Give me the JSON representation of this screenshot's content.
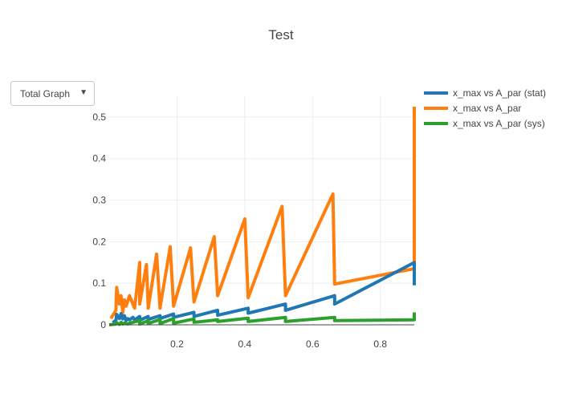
{
  "title": "Test",
  "dropdown": {
    "selected": "Total Graph",
    "arrow": "▼"
  },
  "colors": {
    "stat": "#1f77b4",
    "par": "#ff7f0e",
    "sys": "#2ca02c",
    "axis": "#444444",
    "grid": "#eeeeee"
  },
  "chart_data": {
    "type": "line",
    "title": "Test",
    "xlim": [
      0,
      0.9
    ],
    "ylim": [
      0,
      0.55
    ],
    "xticks": [
      0.2,
      0.4,
      0.6,
      0.8
    ],
    "yticks": [
      0,
      0.1,
      0.2,
      0.3,
      0.4,
      0.5
    ],
    "legend_position": "top-right",
    "grid": true,
    "series": [
      {
        "name": "x_max vs A_par (stat)",
        "color": "#1f77b4",
        "x": [
          0.01,
          0.02,
          0.022,
          0.03,
          0.035,
          0.04,
          0.045,
          0.05,
          0.055,
          0.06,
          0.07,
          0.075,
          0.09,
          0.09,
          0.115,
          0.115,
          0.15,
          0.15,
          0.19,
          0.19,
          0.25,
          0.25,
          0.32,
          0.32,
          0.41,
          0.41,
          0.52,
          0.52,
          0.665,
          0.665,
          0.9,
          0.9
        ],
        "y": [
          0.006,
          0.01,
          0.025,
          0.015,
          0.027,
          0.014,
          0.022,
          0.01,
          0.015,
          0.012,
          0.018,
          0.012,
          0.02,
          0.011,
          0.02,
          0.013,
          0.022,
          0.015,
          0.026,
          0.018,
          0.03,
          0.02,
          0.035,
          0.023,
          0.04,
          0.028,
          0.05,
          0.035,
          0.07,
          0.05,
          0.15,
          0.095
        ]
      },
      {
        "name": "x_max vs A_par",
        "color": "#ff7f0e",
        "x": [
          0.005,
          0.02,
          0.022,
          0.03,
          0.035,
          0.04,
          0.045,
          0.05,
          0.06,
          0.065,
          0.075,
          0.09,
          0.09,
          0.11,
          0.115,
          0.14,
          0.15,
          0.18,
          0.19,
          0.24,
          0.25,
          0.31,
          0.32,
          0.4,
          0.41,
          0.51,
          0.52,
          0.66,
          0.665,
          0.9,
          0.9
        ],
        "y": [
          0.015,
          0.035,
          0.09,
          0.05,
          0.07,
          0.03,
          0.06,
          0.045,
          0.07,
          0.06,
          0.04,
          0.15,
          0.05,
          0.145,
          0.04,
          0.17,
          0.04,
          0.188,
          0.045,
          0.185,
          0.055,
          0.212,
          0.07,
          0.255,
          0.065,
          0.285,
          0.07,
          0.315,
          0.098,
          0.135,
          0.525
        ]
      },
      {
        "name": "x_max vs A_par (sys)",
        "color": "#2ca02c",
        "x": [
          0.0,
          0.02,
          0.022,
          0.03,
          0.035,
          0.04,
          0.045,
          0.055,
          0.06,
          0.09,
          0.09,
          0.115,
          0.115,
          0.15,
          0.15,
          0.19,
          0.19,
          0.25,
          0.25,
          0.32,
          0.32,
          0.41,
          0.41,
          0.52,
          0.52,
          0.665,
          0.665,
          0.9,
          0.9
        ],
        "y": [
          0.0,
          0.002,
          0.005,
          0.001,
          0.006,
          0.002,
          0.004,
          0.002,
          0.004,
          0.01,
          0.002,
          0.01,
          0.003,
          0.013,
          0.003,
          0.015,
          0.004,
          0.014,
          0.006,
          0.012,
          0.008,
          0.016,
          0.008,
          0.018,
          0.008,
          0.018,
          0.01,
          0.012,
          0.03
        ]
      }
    ]
  }
}
